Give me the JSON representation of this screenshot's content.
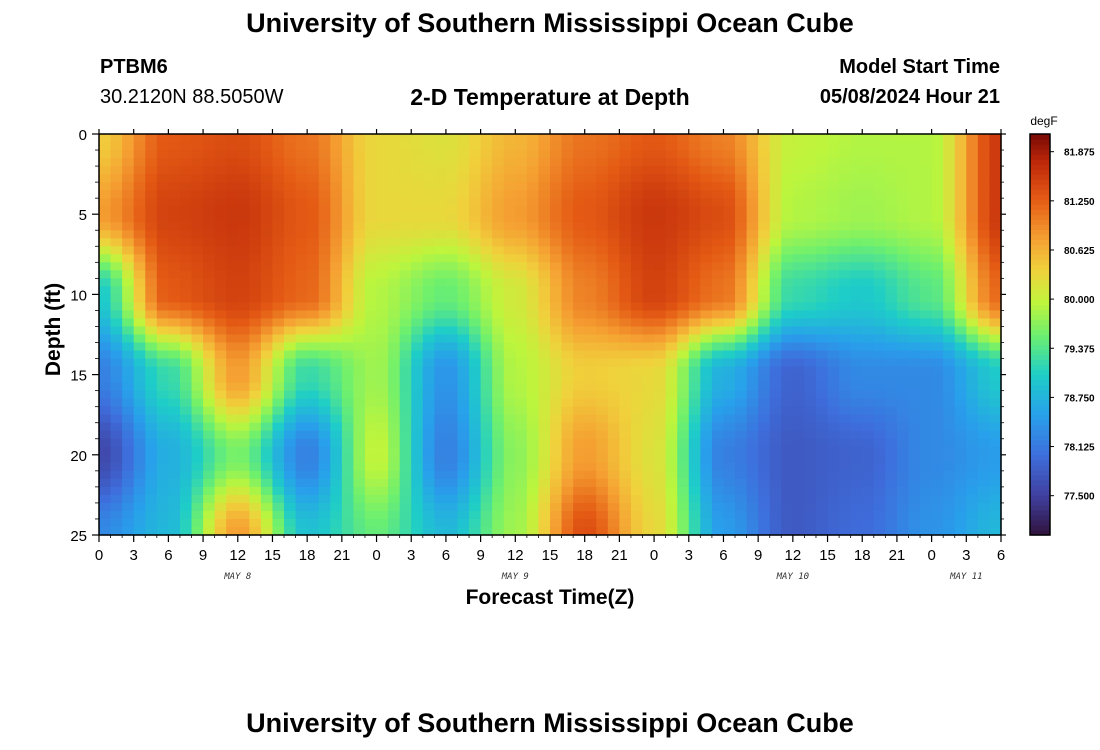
{
  "header": {
    "title": "University of Southern Mississippi Ocean Cube",
    "station_id": "PTBM6",
    "coordinates": "30.2120N  88.5050W",
    "plot_title": "2-D Temperature at Depth",
    "model_label": "Model Start Time",
    "model_time": "05/08/2024 Hour 21"
  },
  "footer": {
    "title": "University of Southern Mississippi Ocean Cube"
  },
  "colors": {
    "background": "#ffffff",
    "text": "#000000"
  },
  "chart_data": {
    "type": "heatmap",
    "title": "2-D Temperature at Depth",
    "xlabel": "Forecast Time(Z)",
    "ylabel": "Depth (ft)",
    "units": "degF",
    "x_start_hour": 0,
    "x_end_hour": 78,
    "x_tick_step_hours": 3,
    "x_tick_labels": [
      "0",
      "3",
      "6",
      "9",
      "12",
      "15",
      "18",
      "21",
      "0",
      "3",
      "6",
      "9",
      "12",
      "15",
      "18",
      "21",
      "0",
      "3",
      "6",
      "9",
      "12",
      "15",
      "18",
      "21",
      "0",
      "3",
      "6"
    ],
    "day_labels": [
      {
        "label": "MAY 8",
        "hour": 12
      },
      {
        "label": "MAY 9",
        "hour": 36
      },
      {
        "label": "MAY 10",
        "hour": 60
      },
      {
        "label": "MAY 11",
        "hour": 75
      }
    ],
    "ylim": [
      0,
      25
    ],
    "y_tick_labels": [
      "0",
      "5",
      "10",
      "15",
      "20",
      "25"
    ],
    "y_tick_values": [
      0,
      5,
      10,
      15,
      20,
      25
    ],
    "colorbar": {
      "min": 77.0,
      "max": 82.1,
      "tick_labels": [
        "81.875",
        "81.250",
        "80.625",
        "80.000",
        "79.375",
        "78.750",
        "78.125",
        "77.500"
      ],
      "tick_values": [
        81.875,
        81.25,
        80.625,
        80.0,
        79.375,
        78.75,
        78.125,
        77.5
      ]
    },
    "grid_hours": [
      0,
      6,
      12,
      18,
      24,
      30,
      36,
      42,
      48,
      54,
      60,
      66,
      72,
      78
    ],
    "grid_depths": [
      0,
      5,
      10,
      15,
      20,
      25
    ],
    "values": [
      [
        80.4,
        81.3,
        81.4,
        81.1,
        80.3,
        80.2,
        80.6,
        81.1,
        81.3,
        81.0,
        80.0,
        79.9,
        79.9,
        81.6
      ],
      [
        80.8,
        81.5,
        81.6,
        81.3,
        80.3,
        80.3,
        80.8,
        81.3,
        81.6,
        81.4,
        79.9,
        79.8,
        79.9,
        81.6
      ],
      [
        79.0,
        81.3,
        81.5,
        81.2,
        79.9,
        79.5,
        80.1,
        81.0,
        81.5,
        81.1,
        79.2,
        79.0,
        79.4,
        81.2
      ],
      [
        78.2,
        79.2,
        80.8,
        79.2,
        79.8,
        78.4,
        79.9,
        80.4,
        80.3,
        78.7,
        77.9,
        78.3,
        78.3,
        79.0
      ],
      [
        77.6,
        78.7,
        79.6,
        78.2,
        80.0,
        78.2,
        79.7,
        80.8,
        80.2,
        78.2,
        77.8,
        77.9,
        78.3,
        78.5
      ],
      [
        78.3,
        78.8,
        80.8,
        78.9,
        79.5,
        78.8,
        79.8,
        81.4,
        80.3,
        78.5,
        77.8,
        78.0,
        78.4,
        78.8
      ]
    ]
  }
}
